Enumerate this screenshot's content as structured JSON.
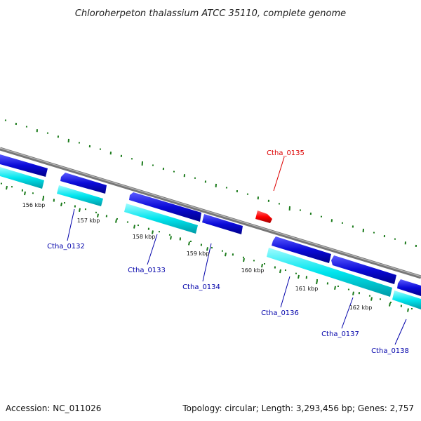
{
  "title": "Chloroherpeton thalassium ATCC 35110, complete genome",
  "footer": {
    "accession": "Accession: NC_011026",
    "summary": "Topology: circular; Length: 3,293,456 bp; Genes: 2,757"
  },
  "axis_ticks": [
    "156 kbp",
    "157 kbp",
    "158 kbp",
    "159 kbp",
    "160 kbp",
    "161 kbp",
    "162 kbp"
  ],
  "genes": [
    {
      "label": "Ctha_0132",
      "highlighted": false
    },
    {
      "label": "Ctha_0133",
      "highlighted": false
    },
    {
      "label": "Ctha_0134",
      "highlighted": false
    },
    {
      "label": "Ctha_0135",
      "highlighted": true
    },
    {
      "label": "Ctha_0136",
      "highlighted": false
    },
    {
      "label": "Ctha_0137",
      "highlighted": false
    },
    {
      "label": "Ctha_0138",
      "highlighted": false
    }
  ],
  "colors": {
    "cds_blue": "#0a0ad8",
    "rna_cyan": "#00e5ee",
    "highlight_red": "#ff0000",
    "backbone_gray": "#888888",
    "gc_green": "#1a7a1a",
    "label_blue": "#0000aa",
    "label_red": "#dd0000"
  }
}
